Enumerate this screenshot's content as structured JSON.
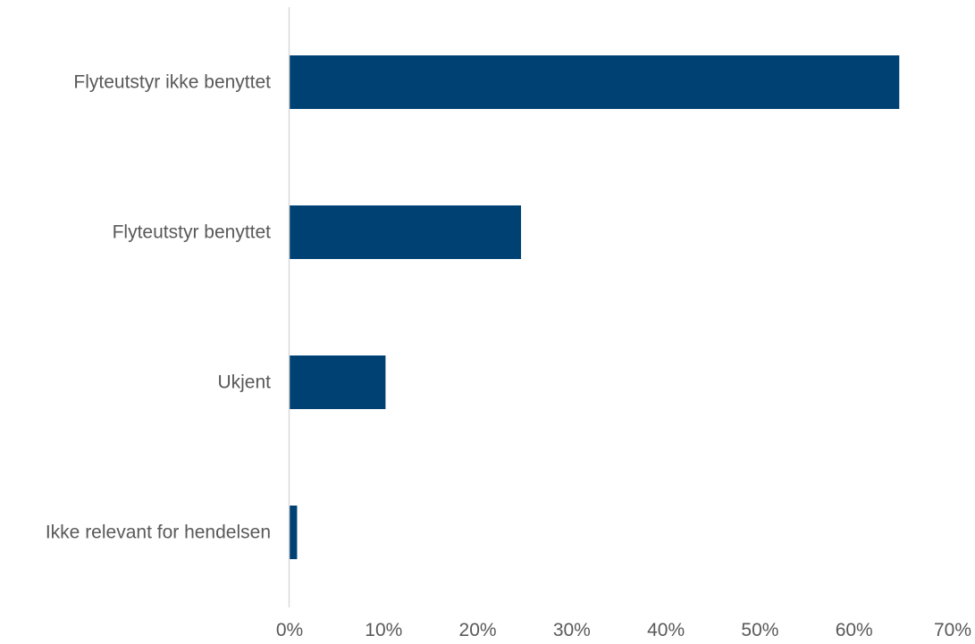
{
  "chart_data": {
    "type": "bar",
    "orientation": "horizontal",
    "categories": [
      "Flyteutstyr ikke benyttet",
      "Flyteutstyr benyttet",
      "Ukjent",
      "Ikke relevant for hendelsen"
    ],
    "values": [
      0.648,
      0.246,
      0.102,
      0.008
    ],
    "xlim": [
      0,
      0.7
    ],
    "x_ticks": [
      0,
      0.1,
      0.2,
      0.3,
      0.4,
      0.5,
      0.6,
      0.7
    ],
    "x_tick_labels": [
      "0%",
      "10%",
      "20%",
      "30%",
      "40%",
      "50%",
      "60%",
      "70%"
    ],
    "grid": false,
    "legend": "none",
    "bar_color": "#004174",
    "axis_color": "#d9d9d9"
  }
}
